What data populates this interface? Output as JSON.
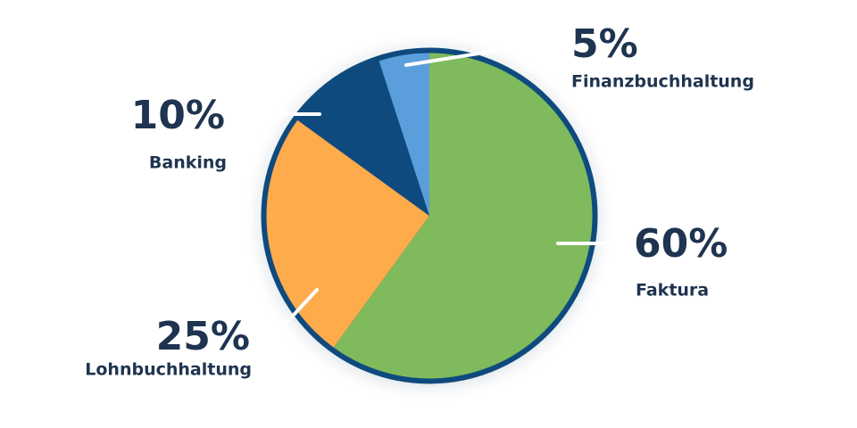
{
  "chart_data": {
    "type": "pie",
    "categories": [
      "Faktura",
      "Lohnbuchhaltung",
      "Banking",
      "Finanzbuchhaltung"
    ],
    "values": [
      60,
      25,
      10,
      5
    ],
    "value_labels": [
      "60%",
      "25%",
      "10%",
      "5%"
    ],
    "colors": [
      "#7fba5c",
      "#fdab4b",
      "#0f4a7f",
      "#5a9fdc"
    ],
    "border_color": "#0f4a7f"
  }
}
